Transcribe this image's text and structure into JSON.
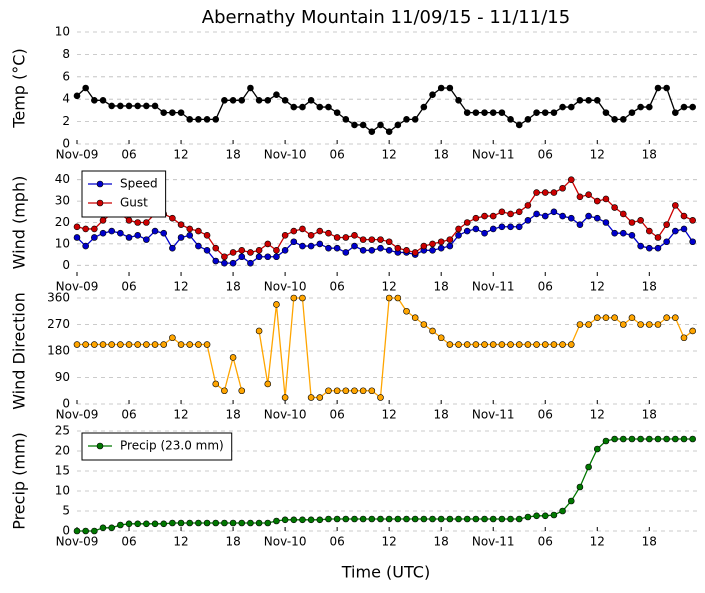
{
  "chart_data": [
    {
      "type": "line",
      "title": "Abernathy Mountain 11/09/15 - 11/11/15",
      "ylabel": "Temp (°C)",
      "x": [
        0,
        1,
        2,
        3,
        4,
        5,
        6,
        7,
        8,
        9,
        10,
        11,
        12,
        13,
        14,
        15,
        16,
        17,
        18,
        19,
        20,
        21,
        22,
        23,
        24,
        25,
        26,
        27,
        28,
        29,
        30,
        31,
        32,
        33,
        34,
        35,
        36,
        37,
        38,
        39,
        40,
        41,
        42,
        43,
        44,
        45,
        46,
        47,
        48,
        49,
        50,
        51,
        52,
        53,
        54,
        55,
        56,
        57,
        58,
        59,
        60,
        61,
        62,
        63,
        64,
        65,
        66,
        67,
        68,
        69,
        70,
        71
      ],
      "values": [
        4.3,
        5,
        3.9,
        3.9,
        3.4,
        3.4,
        3.4,
        3.4,
        3.4,
        3.4,
        2.8,
        2.8,
        2.8,
        2.2,
        2.2,
        2.2,
        2.2,
        3.9,
        3.9,
        3.9,
        5,
        3.9,
        3.9,
        4.4,
        3.9,
        3.3,
        3.3,
        3.9,
        3.3,
        3.3,
        2.8,
        2.2,
        1.7,
        1.7,
        1.1,
        1.7,
        1.1,
        1.7,
        2.2,
        2.2,
        3.3,
        4.4,
        5,
        5,
        3.9,
        2.8,
        2.8,
        2.8,
        2.8,
        2.8,
        2.2,
        1.7,
        2.2,
        2.8,
        2.8,
        2.8,
        3.3,
        3.3,
        3.9,
        3.9,
        3.9,
        2.8,
        2.2,
        2.2,
        2.8,
        3.3,
        3.3,
        5,
        5,
        2.8,
        3.3,
        3.3
      ],
      "color": "#000000",
      "xlim": [
        0,
        71.5
      ],
      "xticks": [
        {
          "value": 0,
          "label": "Nov-09"
        },
        {
          "value": 6,
          "label": "06"
        },
        {
          "value": 12,
          "label": "12"
        },
        {
          "value": 18,
          "label": "18"
        },
        {
          "value": 24,
          "label": "Nov-10"
        },
        {
          "value": 30,
          "label": "06"
        },
        {
          "value": 36,
          "label": "12"
        },
        {
          "value": 42,
          "label": "18"
        },
        {
          "value": 48,
          "label": "Nov-11"
        },
        {
          "value": 54,
          "label": "06"
        },
        {
          "value": 60,
          "label": "12"
        },
        {
          "value": 66,
          "label": "18"
        }
      ],
      "ylim": [
        0,
        10
      ],
      "yticks": [
        0,
        2,
        4,
        6,
        8,
        10
      ],
      "grid": true
    },
    {
      "type": "line",
      "ylabel": "Wind (mph)",
      "x": [
        0,
        1,
        2,
        3,
        4,
        5,
        6,
        7,
        8,
        9,
        10,
        11,
        12,
        13,
        14,
        15,
        16,
        17,
        18,
        19,
        20,
        21,
        22,
        23,
        24,
        25,
        26,
        27,
        28,
        29,
        30,
        31,
        32,
        33,
        34,
        35,
        36,
        37,
        38,
        39,
        40,
        41,
        42,
        43,
        44,
        45,
        46,
        47,
        48,
        49,
        50,
        51,
        52,
        53,
        54,
        55,
        56,
        57,
        58,
        59,
        60,
        61,
        62,
        63,
        64,
        65,
        66,
        67,
        68,
        69,
        70,
        71
      ],
      "series": [
        {
          "name": "Speed",
          "color": "#0000cc",
          "values": [
            13,
            9,
            13,
            15,
            16,
            15,
            13,
            14,
            12,
            16,
            15,
            8,
            13,
            14,
            9,
            7,
            2,
            1,
            1,
            4,
            1,
            4,
            4,
            4,
            7,
            11,
            9,
            9,
            10,
            8,
            8,
            6,
            9,
            7,
            7,
            8,
            7,
            6,
            6,
            5,
            7,
            7,
            8,
            9,
            14,
            16,
            17,
            15,
            17,
            18,
            18,
            18,
            21,
            24,
            23,
            25,
            23,
            22,
            19,
            23,
            22,
            20,
            15,
            15,
            14,
            9,
            8,
            8,
            11,
            16,
            17,
            11
          ]
        },
        {
          "name": "Gust",
          "color": "#cc0000",
          "values": [
            18,
            17,
            17,
            21,
            24,
            24,
            21,
            20,
            20,
            24,
            24,
            22,
            19,
            17,
            16,
            14,
            8,
            4,
            6,
            7,
            6,
            7,
            10,
            7,
            14,
            16,
            17,
            14,
            16,
            15,
            13,
            13,
            14,
            12,
            12,
            12,
            11,
            8,
            7,
            6,
            9,
            10,
            11,
            12,
            17,
            20,
            22,
            23,
            23,
            25,
            24,
            25,
            28,
            34,
            34,
            34,
            36,
            40,
            32,
            33,
            30,
            31,
            27,
            24,
            20,
            21,
            16,
            13,
            19,
            28,
            23,
            21
          ]
        }
      ],
      "legend": "upper left",
      "xlim": [
        0,
        71.5
      ],
      "xticks": [
        {
          "value": 0,
          "label": "Nov-09"
        },
        {
          "value": 6,
          "label": "06"
        },
        {
          "value": 12,
          "label": "12"
        },
        {
          "value": 18,
          "label": "18"
        },
        {
          "value": 24,
          "label": "Nov-10"
        },
        {
          "value": 30,
          "label": "06"
        },
        {
          "value": 36,
          "label": "12"
        },
        {
          "value": 42,
          "label": "18"
        },
        {
          "value": 48,
          "label": "Nov-11"
        },
        {
          "value": 54,
          "label": "06"
        },
        {
          "value": 60,
          "label": "12"
        },
        {
          "value": 66,
          "label": "18"
        }
      ],
      "ylim": [
        -5,
        45
      ],
      "yticks": [
        0,
        10,
        20,
        30,
        40
      ],
      "grid": true
    },
    {
      "type": "line",
      "ylabel": "Wind Direction",
      "x": [
        0,
        1,
        2,
        3,
        4,
        5,
        6,
        7,
        8,
        9,
        10,
        11,
        12,
        13,
        14,
        15,
        16,
        17,
        18,
        19,
        20,
        21,
        22,
        23,
        24,
        25,
        26,
        27,
        28,
        29,
        30,
        31,
        32,
        33,
        34,
        35,
        36,
        37,
        38,
        39,
        40,
        41,
        42,
        43,
        44,
        45,
        46,
        47,
        48,
        49,
        50,
        51,
        52,
        53,
        54,
        55,
        56,
        57,
        58,
        59,
        60,
        61,
        62,
        63,
        64,
        65,
        66,
        67,
        68,
        69,
        70,
        71
      ],
      "values": [
        202,
        202,
        202,
        202,
        202,
        202,
        202,
        202,
        202,
        202,
        202,
        225,
        202,
        202,
        202,
        202,
        68,
        45,
        158,
        45,
        null,
        248,
        68,
        338,
        22,
        360,
        360,
        22,
        22,
        45,
        45,
        45,
        45,
        45,
        45,
        22,
        360,
        360,
        315,
        293,
        270,
        248,
        225,
        202,
        202,
        202,
        202,
        202,
        202,
        202,
        202,
        202,
        202,
        202,
        202,
        202,
        202,
        202,
        270,
        270,
        293,
        293,
        293,
        270,
        293,
        270,
        270,
        270,
        293,
        293,
        225,
        248
      ],
      "color": "#ffa500",
      "xlim": [
        0,
        71.5
      ],
      "xticks": [
        {
          "value": 0,
          "label": "Nov-09"
        },
        {
          "value": 6,
          "label": "06"
        },
        {
          "value": 12,
          "label": "12"
        },
        {
          "value": 18,
          "label": "18"
        },
        {
          "value": 24,
          "label": "Nov-10"
        },
        {
          "value": 30,
          "label": "06"
        },
        {
          "value": 36,
          "label": "12"
        },
        {
          "value": 42,
          "label": "18"
        },
        {
          "value": 48,
          "label": "Nov-11"
        },
        {
          "value": 54,
          "label": "06"
        },
        {
          "value": 60,
          "label": "12"
        },
        {
          "value": 66,
          "label": "18"
        }
      ],
      "ylim": [
        0,
        360
      ],
      "yticks": [
        0,
        90,
        180,
        270,
        360
      ],
      "grid": true
    },
    {
      "type": "line",
      "ylabel": "Precip (mm)",
      "xlabel": "Time (UTC)",
      "x": [
        0,
        1,
        2,
        3,
        4,
        5,
        6,
        7,
        8,
        9,
        10,
        11,
        12,
        13,
        14,
        15,
        16,
        17,
        18,
        19,
        20,
        21,
        22,
        23,
        24,
        25,
        26,
        27,
        28,
        29,
        30,
        31,
        32,
        33,
        34,
        35,
        36,
        37,
        38,
        39,
        40,
        41,
        42,
        43,
        44,
        45,
        46,
        47,
        48,
        49,
        50,
        51,
        52,
        53,
        54,
        55,
        56,
        57,
        58,
        59,
        60,
        61,
        62,
        63,
        64,
        65,
        66,
        67,
        68,
        69,
        70,
        71
      ],
      "series": [
        {
          "name": "Precip (23.0 mm)",
          "color": "#007700",
          "values": [
            0,
            0,
            0,
            0.8,
            0.8,
            1.5,
            1.8,
            1.8,
            1.8,
            1.8,
            1.8,
            2,
            2,
            2,
            2,
            2,
            2,
            2,
            2,
            2,
            2,
            2,
            2,
            2.5,
            2.8,
            2.8,
            2.8,
            2.8,
            2.8,
            3,
            3,
            3,
            3,
            3,
            3,
            3,
            3,
            3,
            3,
            3,
            3,
            3,
            3,
            3,
            3,
            3,
            3,
            3,
            3,
            3,
            3,
            3,
            3.5,
            3.8,
            3.8,
            4,
            5,
            7.5,
            11,
            16,
            20.5,
            22.5,
            23,
            23,
            23,
            23,
            23,
            23,
            23,
            23,
            23,
            23
          ]
        }
      ],
      "legend": "upper left",
      "xlim": [
        0,
        71.5
      ],
      "xticks": [
        {
          "value": 0,
          "label": "Nov-09"
        },
        {
          "value": 6,
          "label": "06"
        },
        {
          "value": 12,
          "label": "12"
        },
        {
          "value": 18,
          "label": "18"
        },
        {
          "value": 24,
          "label": "Nov-10"
        },
        {
          "value": 30,
          "label": "06"
        },
        {
          "value": 36,
          "label": "12"
        },
        {
          "value": 42,
          "label": "18"
        },
        {
          "value": 48,
          "label": "Nov-11"
        },
        {
          "value": 54,
          "label": "06"
        },
        {
          "value": 60,
          "label": "12"
        },
        {
          "value": 66,
          "label": "18"
        }
      ],
      "ylim": [
        0,
        25
      ],
      "yticks": [
        0,
        5,
        10,
        15,
        20,
        25
      ],
      "grid": true
    }
  ]
}
